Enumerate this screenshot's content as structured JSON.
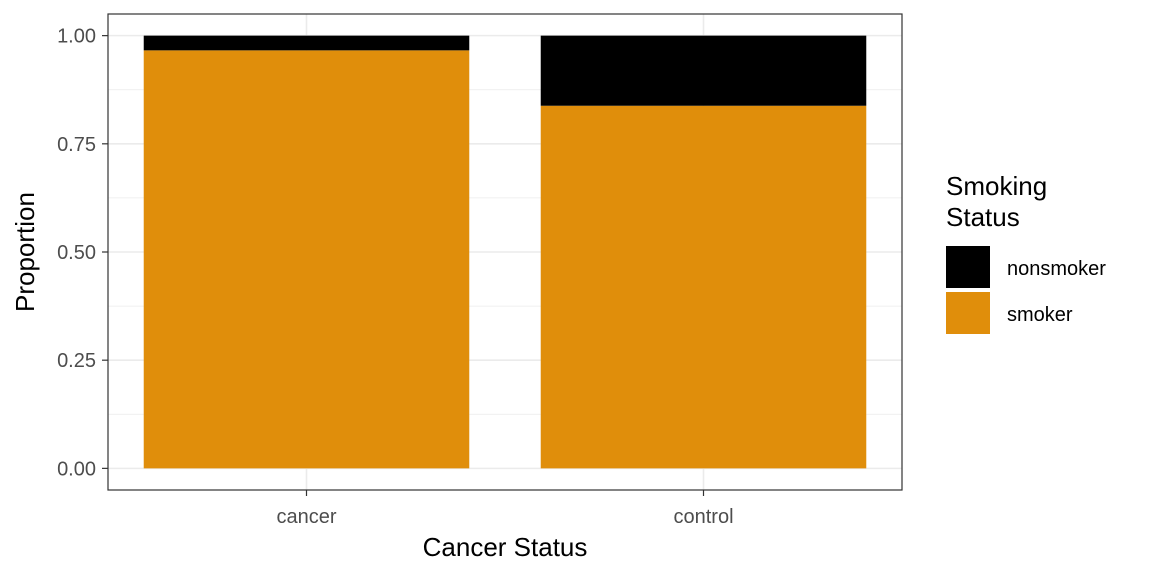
{
  "chart_data": {
    "type": "bar",
    "stacked": true,
    "position": "fill",
    "categories": [
      "cancer",
      "control"
    ],
    "series": [
      {
        "name": "nonsmoker",
        "values": [
          0.034,
          0.162
        ],
        "color": "#000000"
      },
      {
        "name": "smoker",
        "values": [
          0.966,
          0.838
        ],
        "color": "#E08E0B"
      }
    ],
    "xlabel": "Cancer Status",
    "ylabel": "Proportion",
    "ylim": [
      -0.05,
      1.05
    ],
    "yticks": [
      0.0,
      0.25,
      0.5,
      0.75,
      1.0
    ],
    "ytick_labels": [
      "0.00",
      "0.25",
      "0.50",
      "0.75",
      "1.00"
    ],
    "grid": true,
    "legend": {
      "title_lines": [
        "Smoking",
        "Status"
      ],
      "position": "right"
    }
  }
}
